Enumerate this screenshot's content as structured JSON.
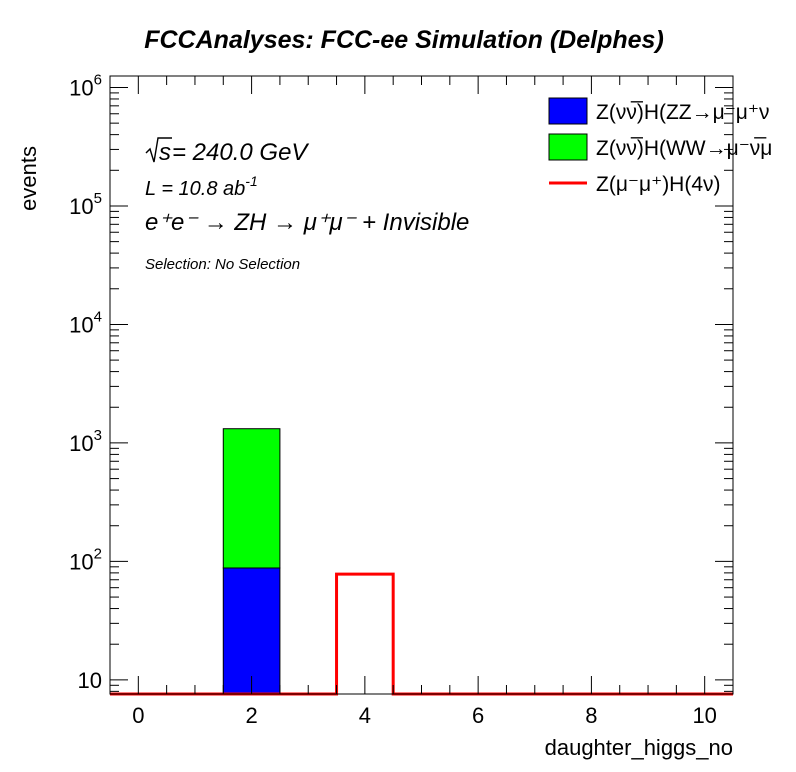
{
  "chart_data": {
    "type": "bar",
    "stacked": true,
    "title": "FCCAnalyses: FCC-ee Simulation (Delphes)",
    "xlabel": "daughter_higgs_no",
    "ylabel": "events",
    "xlim": [
      -0.5,
      10.5
    ],
    "ylim": [
      7.6,
      1250000
    ],
    "yscale": "log",
    "grid": false,
    "legend_position": "top-right",
    "x_ticks": [
      0,
      2,
      4,
      6,
      8,
      10
    ],
    "y_ticks": [
      {
        "value": 10,
        "base": "10",
        "exp": ""
      },
      {
        "value": 100,
        "base": "10",
        "exp": "2"
      },
      {
        "value": 1000,
        "base": "10",
        "exp": "3"
      },
      {
        "value": 10000,
        "base": "10",
        "exp": "4"
      },
      {
        "value": 100000,
        "base": "10",
        "exp": "5"
      },
      {
        "value": 1000000,
        "base": "10",
        "exp": "6"
      }
    ],
    "annotations": {
      "sqrt_s": "s",
      "sqrt_s_value": " = 240.0 GeV",
      "lumi_text": "L = 10.8 ab",
      "lumi_sup": "-1",
      "process_line": "e⁺e⁻ → ZH → μ⁺μ⁻ + Invisible",
      "selection": "Selection: No Selection"
    },
    "series": [
      {
        "name": "Z(νν̅)H(ZZ→μ⁻μ⁺ν",
        "style": "filled",
        "color": "#0000ff",
        "bins": [
          {
            "low": 1.5,
            "high": 2.5,
            "value": 88
          }
        ]
      },
      {
        "name": "Z(νν̅)H(WW→μ⁻ν̅μ",
        "style": "filled",
        "color": "#00ff00",
        "bins": [
          {
            "low": 1.5,
            "high": 2.5,
            "value": 1230
          }
        ]
      },
      {
        "name": "Z(μ⁻μ⁺)H(4ν)",
        "style": "line",
        "color": "#ff0000",
        "bins": [
          {
            "low": 3.5,
            "high": 4.5,
            "value": 78
          }
        ]
      }
    ]
  }
}
